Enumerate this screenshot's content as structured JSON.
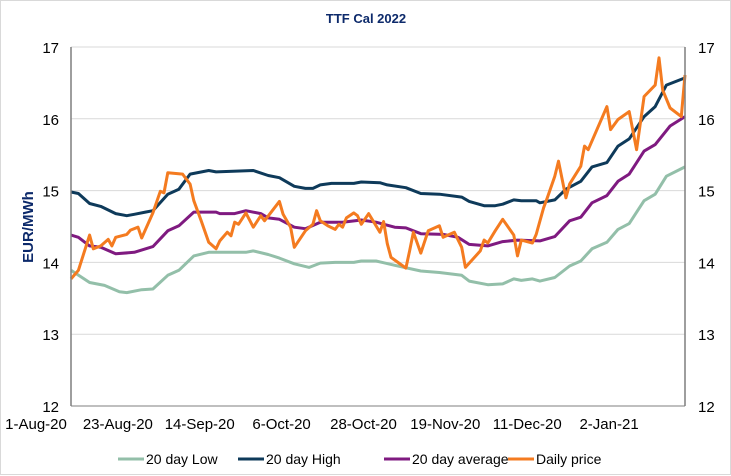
{
  "chart_data": {
    "type": "line",
    "title": "TTF Cal 2022",
    "ylabel": "EUR/MWh",
    "xlabel": "",
    "ylim": [
      12,
      17
    ],
    "y_ticks": [
      "12",
      "13",
      "14",
      "15",
      "16",
      "17"
    ],
    "secondary_y_ticks": [
      "12",
      "13",
      "14",
      "15",
      "16",
      "17"
    ],
    "xlim": [
      "1-Aug-20",
      "13-Jan-21"
    ],
    "x_ticks": [
      "1-Aug-20",
      "23-Aug-20",
      "14-Sep-20",
      "6-Oct-20",
      "28-Oct-20",
      "19-Nov-20",
      "11-Dec-20",
      "2-Jan-21"
    ],
    "grid": "horizontal",
    "legend": "bottom",
    "series": [
      {
        "name": "20 day Low",
        "color": "#93bfa9",
        "points": [
          [
            "1-Aug-20",
            13.89
          ],
          [
            "6-Aug-20",
            13.72
          ],
          [
            "10-Aug-20",
            13.68
          ],
          [
            "14-Aug-20",
            13.59
          ],
          [
            "16-Aug-20",
            13.58
          ],
          [
            "20-Aug-20",
            13.62
          ],
          [
            "23-Aug-20",
            13.63
          ],
          [
            "27-Aug-20",
            13.82
          ],
          [
            "30-Aug-20",
            13.89
          ],
          [
            "3-Sep-20",
            14.09
          ],
          [
            "7-Sep-20",
            14.14
          ],
          [
            "17-Sep-20",
            14.14
          ],
          [
            "19-Sep-20",
            14.16
          ],
          [
            "23-Sep-20",
            14.11
          ],
          [
            "26-Sep-20",
            14.06
          ],
          [
            "30-Sep-20",
            13.98
          ],
          [
            "4-Oct-20",
            13.93
          ],
          [
            "7-Oct-20",
            13.99
          ],
          [
            "11-Oct-20",
            14.0
          ],
          [
            "16-Oct-20",
            14.0
          ],
          [
            "18-Oct-20",
            14.02
          ],
          [
            "22-Oct-20",
            14.02
          ],
          [
            "27-Oct-20",
            13.96
          ],
          [
            "3-Nov-20",
            13.88
          ],
          [
            "8-Nov-20",
            13.86
          ],
          [
            "14-Nov-20",
            13.82
          ],
          [
            "16-Nov-20",
            13.74
          ],
          [
            "21-Nov-20",
            13.69
          ],
          [
            "25-Nov-20",
            13.7
          ],
          [
            "28-Nov-20",
            13.77
          ],
          [
            "30-Nov-20",
            13.75
          ],
          [
            "3-Dec-20",
            13.77
          ],
          [
            "5-Dec-20",
            13.74
          ],
          [
            "9-Dec-20",
            13.79
          ],
          [
            "13-Dec-20",
            13.95
          ],
          [
            "16-Dec-20",
            14.02
          ],
          [
            "19-Dec-20",
            14.19
          ],
          [
            "23-Dec-20",
            14.28
          ],
          [
            "26-Dec-20",
            14.46
          ],
          [
            "29-Dec-20",
            14.54
          ],
          [
            "2-Jan-21",
            14.86
          ],
          [
            "5-Jan-21",
            14.95
          ],
          [
            "8-Jan-21",
            15.2
          ],
          [
            "13-Jan-21",
            15.33
          ]
        ]
      },
      {
        "name": "20 day High",
        "color": "#0e3a5a",
        "points": [
          [
            "1-Aug-20",
            14.98
          ],
          [
            "3-Aug-20",
            14.96
          ],
          [
            "6-Aug-20",
            14.82
          ],
          [
            "9-Aug-20",
            14.78
          ],
          [
            "13-Aug-20",
            14.68
          ],
          [
            "16-Aug-20",
            14.65
          ],
          [
            "18-Aug-20",
            14.67
          ],
          [
            "21-Aug-20",
            14.7
          ],
          [
            "23-Aug-20",
            14.72
          ],
          [
            "27-Aug-20",
            14.95
          ],
          [
            "30-Aug-20",
            15.02
          ],
          [
            "2-Sep-20",
            15.23
          ],
          [
            "7-Sep-20",
            15.28
          ],
          [
            "9-Sep-20",
            15.26
          ],
          [
            "19-Sep-20",
            15.28
          ],
          [
            "23-Sep-20",
            15.21
          ],
          [
            "26-Sep-20",
            15.18
          ],
          [
            "30-Sep-20",
            15.06
          ],
          [
            "3-Oct-20",
            15.03
          ],
          [
            "5-Oct-20",
            15.03
          ],
          [
            "7-Oct-20",
            15.08
          ],
          [
            "10-Oct-20",
            15.1
          ],
          [
            "16-Oct-20",
            15.1
          ],
          [
            "18-Oct-20",
            15.12
          ],
          [
            "23-Oct-20",
            15.11
          ],
          [
            "25-Oct-20",
            15.08
          ],
          [
            "30-Oct-20",
            15.04
          ],
          [
            "3-Nov-20",
            14.96
          ],
          [
            "8-Nov-20",
            14.95
          ],
          [
            "14-Nov-20",
            14.91
          ],
          [
            "16-Nov-20",
            14.85
          ],
          [
            "20-Nov-20",
            14.79
          ],
          [
            "23-Nov-20",
            14.79
          ],
          [
            "25-Nov-20",
            14.81
          ],
          [
            "28-Nov-20",
            14.87
          ],
          [
            "30-Nov-20",
            14.86
          ],
          [
            "4-Dec-20",
            14.86
          ],
          [
            "5-Dec-20",
            14.83
          ],
          [
            "9-Dec-20",
            14.87
          ],
          [
            "12-Dec-20",
            15.02
          ],
          [
            "16-Dec-20",
            15.13
          ],
          [
            "19-Dec-20",
            15.33
          ],
          [
            "23-Dec-20",
            15.39
          ],
          [
            "26-Dec-20",
            15.62
          ],
          [
            "29-Dec-20",
            15.72
          ],
          [
            "2-Jan-21",
            16.03
          ],
          [
            "5-Jan-21",
            16.17
          ],
          [
            "8-Jan-21",
            16.47
          ],
          [
            "13-Jan-21",
            16.57
          ]
        ]
      },
      {
        "name": "20 day average",
        "color": "#7f1a80",
        "points": [
          [
            "1-Aug-20",
            14.38
          ],
          [
            "3-Aug-20",
            14.35
          ],
          [
            "6-Aug-20",
            14.23
          ],
          [
            "9-Aug-20",
            14.21
          ],
          [
            "13-Aug-20",
            14.12
          ],
          [
            "18-Aug-20",
            14.14
          ],
          [
            "23-Aug-20",
            14.22
          ],
          [
            "27-Aug-20",
            14.44
          ],
          [
            "30-Aug-20",
            14.51
          ],
          [
            "3-Sep-20",
            14.7
          ],
          [
            "9-Sep-20",
            14.7
          ],
          [
            "10-Sep-20",
            14.68
          ],
          [
            "14-Sep-20",
            14.68
          ],
          [
            "17-Sep-20",
            14.72
          ],
          [
            "21-Sep-20",
            14.68
          ],
          [
            "23-Sep-20",
            14.62
          ],
          [
            "26-Sep-20",
            14.6
          ],
          [
            "30-Sep-20",
            14.49
          ],
          [
            "3-Oct-20",
            14.47
          ],
          [
            "7-Oct-20",
            14.56
          ],
          [
            "13-Oct-20",
            14.56
          ],
          [
            "18-Oct-20",
            14.59
          ],
          [
            "22-Oct-20",
            14.56
          ],
          [
            "27-Oct-20",
            14.49
          ],
          [
            "30-Oct-20",
            14.48
          ],
          [
            "3-Nov-20",
            14.4
          ],
          [
            "9-Nov-20",
            14.39
          ],
          [
            "13-Nov-20",
            14.35
          ],
          [
            "16-Nov-20",
            14.25
          ],
          [
            "21-Nov-20",
            14.23
          ],
          [
            "25-Nov-20",
            14.29
          ],
          [
            "29-Nov-20",
            14.31
          ],
          [
            "5-Dec-20",
            14.3
          ],
          [
            "9-Dec-20",
            14.36
          ],
          [
            "13-Dec-20",
            14.58
          ],
          [
            "16-Dec-20",
            14.63
          ],
          [
            "19-Dec-20",
            14.83
          ],
          [
            "23-Dec-20",
            14.93
          ],
          [
            "26-Dec-20",
            15.13
          ],
          [
            "29-Dec-20",
            15.23
          ],
          [
            "2-Jan-21",
            15.55
          ],
          [
            "5-Jan-21",
            15.64
          ],
          [
            "9-Jan-21",
            15.9
          ],
          [
            "13-Jan-21",
            16.03
          ]
        ]
      },
      {
        "name": "Daily price",
        "color": "#f47b20",
        "points": [
          [
            "1-Aug-20",
            13.77
          ],
          [
            "3-Aug-20",
            13.89
          ],
          [
            "6-Aug-20",
            14.38
          ],
          [
            "7-Aug-20",
            14.19
          ],
          [
            "9-Aug-20",
            14.23
          ],
          [
            "11-Aug-20",
            14.32
          ],
          [
            "12-Aug-20",
            14.23
          ],
          [
            "13-Aug-20",
            14.35
          ],
          [
            "16-Aug-20",
            14.39
          ],
          [
            "17-Aug-20",
            14.45
          ],
          [
            "19-Aug-20",
            14.49
          ],
          [
            "20-Aug-20",
            14.34
          ],
          [
            "23-Aug-20",
            14.69
          ],
          [
            "25-Aug-20",
            14.99
          ],
          [
            "26-Aug-20",
            14.97
          ],
          [
            "27-Aug-20",
            15.25
          ],
          [
            "31-Aug-20",
            15.23
          ],
          [
            "2-Sep-20",
            15.09
          ],
          [
            "3-Sep-20",
            14.86
          ],
          [
            "5-Sep-20",
            14.58
          ],
          [
            "7-Sep-20",
            14.28
          ],
          [
            "9-Sep-20",
            14.19
          ],
          [
            "10-Sep-20",
            14.3
          ],
          [
            "12-Sep-20",
            14.42
          ],
          [
            "13-Sep-20",
            14.37
          ],
          [
            "14-Sep-20",
            14.56
          ],
          [
            "15-Sep-20",
            14.53
          ],
          [
            "17-Sep-20",
            14.69
          ],
          [
            "19-Sep-20",
            14.49
          ],
          [
            "21-Sep-20",
            14.65
          ],
          [
            "22-Sep-20",
            14.58
          ],
          [
            "26-Sep-20",
            14.85
          ],
          [
            "27-Sep-20",
            14.67
          ],
          [
            "29-Sep-20",
            14.49
          ],
          [
            "30-Sep-20",
            14.21
          ],
          [
            "3-Oct-20",
            14.44
          ],
          [
            "5-Oct-20",
            14.53
          ],
          [
            "6-Oct-20",
            14.72
          ],
          [
            "7-Oct-20",
            14.58
          ],
          [
            "9-Oct-20",
            14.51
          ],
          [
            "11-Oct-20",
            14.46
          ],
          [
            "12-Oct-20",
            14.53
          ],
          [
            "13-Oct-20",
            14.49
          ],
          [
            "14-Oct-20",
            14.62
          ],
          [
            "16-Oct-20",
            14.69
          ],
          [
            "17-Oct-20",
            14.65
          ],
          [
            "18-Oct-20",
            14.53
          ],
          [
            "20-Oct-20",
            14.68
          ],
          [
            "23-Oct-20",
            14.42
          ],
          [
            "24-Oct-20",
            14.57
          ],
          [
            "25-Oct-20",
            14.26
          ],
          [
            "26-Oct-20",
            14.07
          ],
          [
            "30-Oct-20",
            13.92
          ],
          [
            "31-Oct-20",
            14.16
          ],
          [
            "1-Nov-20",
            14.42
          ],
          [
            "3-Nov-20",
            14.13
          ],
          [
            "5-Nov-20",
            14.44
          ],
          [
            "8-Nov-20",
            14.51
          ],
          [
            "9-Nov-20",
            14.35
          ],
          [
            "12-Nov-20",
            14.42
          ],
          [
            "14-Nov-20",
            14.21
          ],
          [
            "15-Nov-20",
            13.93
          ],
          [
            "19-Nov-20",
            14.16
          ],
          [
            "20-Nov-20",
            14.31
          ],
          [
            "21-Nov-20",
            14.27
          ],
          [
            "23-Nov-20",
            14.44
          ],
          [
            "25-Nov-20",
            14.6
          ],
          [
            "28-Nov-20",
            14.38
          ],
          [
            "29-Nov-20",
            14.09
          ],
          [
            "30-Nov-20",
            14.31
          ],
          [
            "3-Dec-20",
            14.27
          ],
          [
            "4-Dec-20",
            14.39
          ],
          [
            "6-Dec-20",
            14.76
          ],
          [
            "7-Dec-20",
            14.9
          ],
          [
            "9-Dec-20",
            15.2
          ],
          [
            "10-Dec-20",
            15.41
          ],
          [
            "12-Dec-20",
            14.9
          ],
          [
            "13-Dec-20",
            15.09
          ],
          [
            "16-Dec-20",
            15.34
          ],
          [
            "17-Dec-20",
            15.62
          ],
          [
            "18-Dec-20",
            15.57
          ],
          [
            "23-Dec-20",
            16.17
          ],
          [
            "24-Dec-20",
            15.85
          ],
          [
            "26-Dec-20",
            15.99
          ],
          [
            "29-Dec-20",
            16.1
          ],
          [
            "31-Dec-20",
            15.57
          ],
          [
            "2-Jan-21",
            16.31
          ],
          [
            "5-Jan-21",
            16.47
          ],
          [
            "6-Jan-21",
            16.85
          ],
          [
            "7-Jan-21",
            16.4
          ],
          [
            "9-Jan-21",
            16.15
          ],
          [
            "12-Jan-21",
            16.03
          ],
          [
            "13-Jan-21",
            16.61
          ]
        ]
      }
    ]
  }
}
